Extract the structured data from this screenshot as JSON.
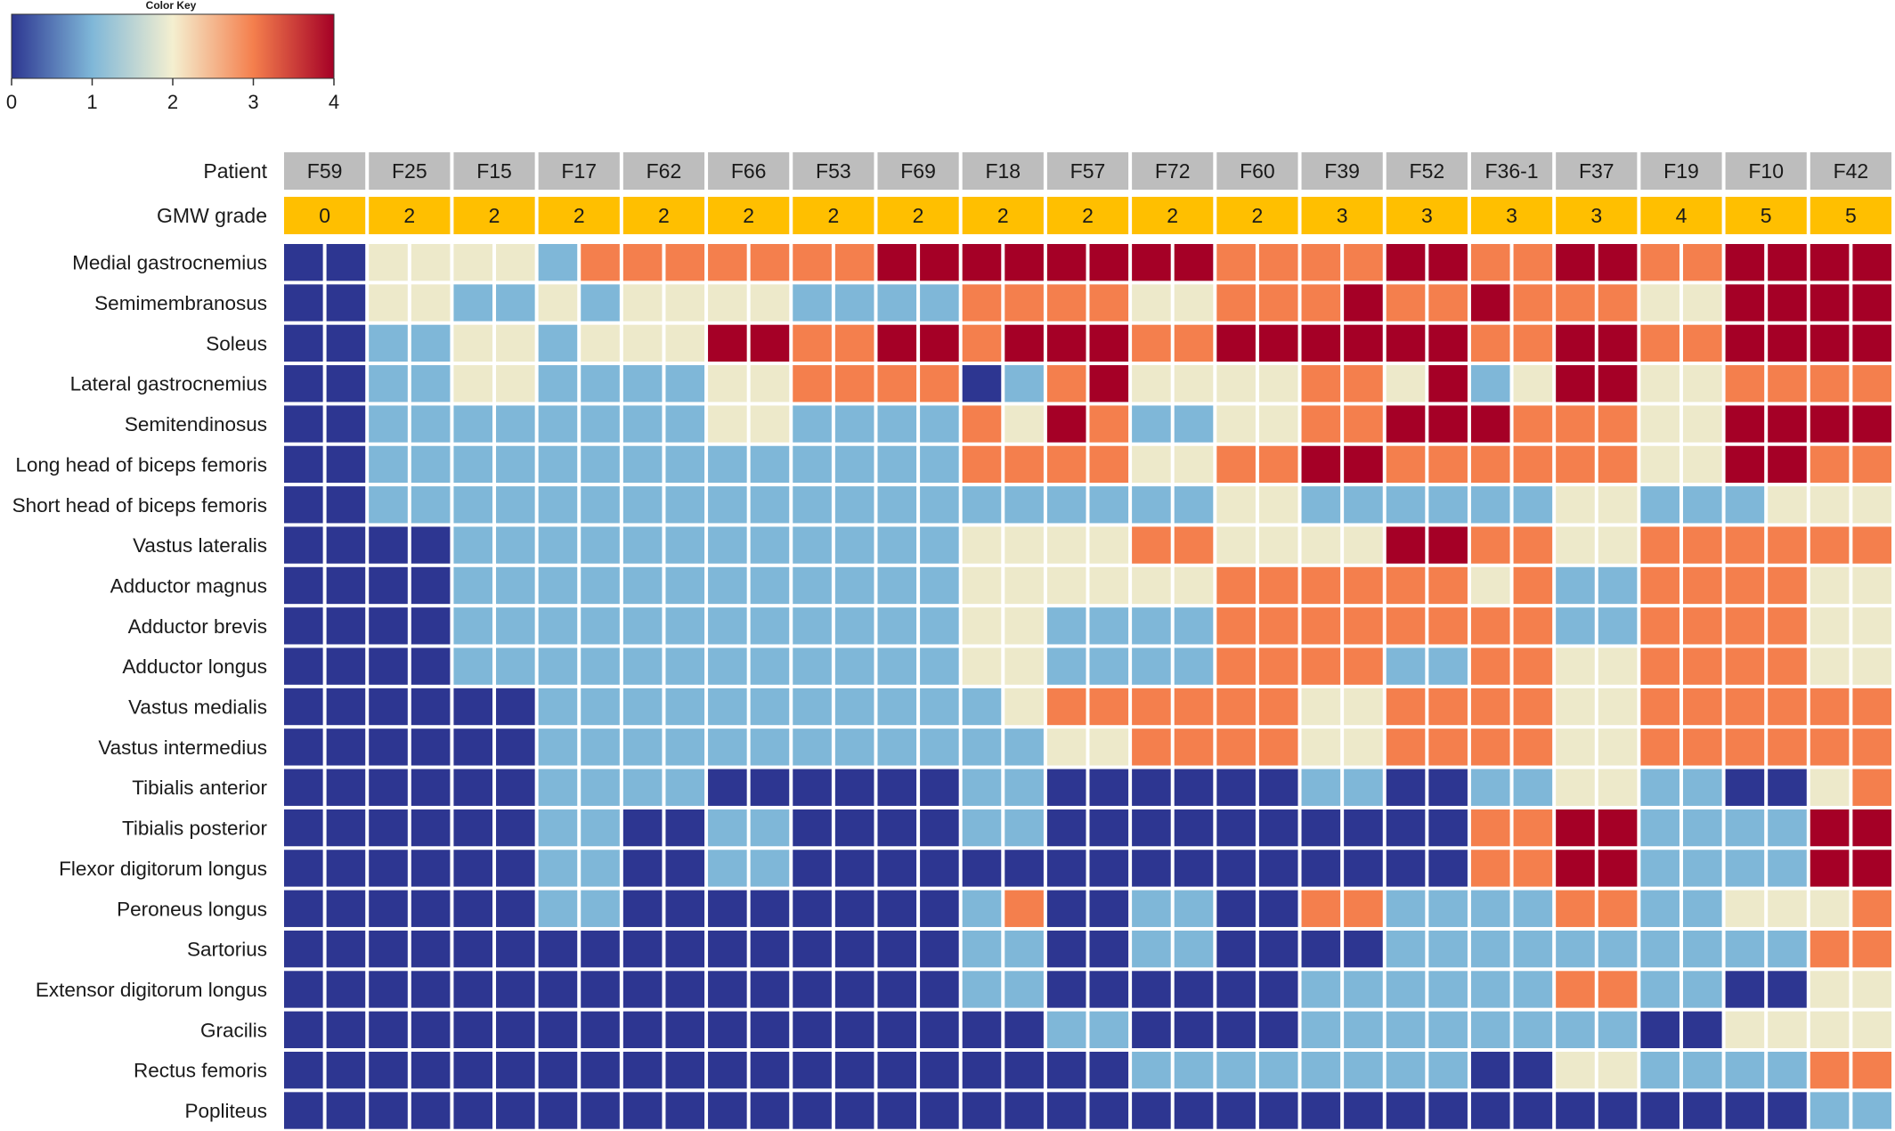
{
  "chart_data": {
    "type": "heatmap",
    "color_key": {
      "title": "Color Key",
      "ticks": [
        0,
        1,
        2,
        3,
        4
      ],
      "range": [
        0,
        4
      ],
      "gradient": [
        "#2d3691",
        "#7fb7d8",
        "#f4efd0",
        "#f47f4d",
        "#a50026"
      ]
    },
    "header_rows": [
      {
        "label": "Patient",
        "values": [
          "F59",
          "F25",
          "F15",
          "F17",
          "F62",
          "F66",
          "F53",
          "F69",
          "F18",
          "F57",
          "F72",
          "F60",
          "F39",
          "F52",
          "F36-1",
          "F37",
          "F19",
          "F10",
          "F42"
        ],
        "color": "#bdbdbd"
      },
      {
        "label": "GMW grade",
        "values": [
          "0",
          "2",
          "2",
          "2",
          "2",
          "2",
          "2",
          "2",
          "2",
          "2",
          "2",
          "2",
          "3",
          "3",
          "3",
          "3",
          "4",
          "5",
          "5"
        ],
        "color": "#ffbf00"
      }
    ],
    "levels": {
      "0": "#2d3691",
      "1": "#7fb7d8",
      "2": "#ede9ca",
      "3": "#f47f4d",
      "4": "#a50026"
    },
    "rows": [
      {
        "muscle": "Medial gastrocnemius",
        "values": [
          0,
          0,
          2,
          2,
          2,
          2,
          1,
          3,
          3,
          3,
          3,
          3,
          3,
          3,
          4,
          4,
          4,
          4,
          4,
          4,
          4,
          4,
          3,
          3,
          3,
          3,
          4,
          4,
          3,
          3,
          4,
          4,
          3,
          3,
          4,
          4,
          4,
          4
        ]
      },
      {
        "muscle": "Semimembranosus",
        "values": [
          0,
          0,
          2,
          2,
          1,
          1,
          2,
          1,
          2,
          2,
          2,
          2,
          1,
          1,
          1,
          1,
          3,
          3,
          3,
          3,
          2,
          2,
          3,
          3,
          3,
          4,
          3,
          3,
          4,
          3,
          3,
          3,
          2,
          2,
          4,
          4,
          4,
          4
        ]
      },
      {
        "muscle": "Soleus",
        "values": [
          0,
          0,
          1,
          1,
          2,
          2,
          1,
          2,
          2,
          2,
          4,
          4,
          3,
          3,
          4,
          4,
          3,
          4,
          4,
          4,
          3,
          3,
          4,
          4,
          4,
          4,
          4,
          4,
          3,
          3,
          4,
          4,
          3,
          3,
          4,
          4,
          4,
          4
        ]
      },
      {
        "muscle": "Lateral gastrocnemius",
        "values": [
          0,
          0,
          1,
          1,
          2,
          2,
          1,
          1,
          1,
          1,
          2,
          2,
          3,
          3,
          3,
          3,
          0,
          1,
          3,
          4,
          2,
          2,
          2,
          2,
          3,
          3,
          2,
          4,
          1,
          2,
          4,
          4,
          2,
          2,
          3,
          3,
          3,
          3
        ]
      },
      {
        "muscle": "Semitendinosus",
        "values": [
          0,
          0,
          1,
          1,
          1,
          1,
          1,
          1,
          1,
          1,
          2,
          2,
          1,
          1,
          1,
          1,
          3,
          2,
          4,
          3,
          1,
          1,
          2,
          2,
          3,
          3,
          4,
          4,
          4,
          3,
          3,
          3,
          2,
          2,
          4,
          4,
          4,
          4
        ]
      },
      {
        "muscle": "Long head of biceps femoris",
        "values": [
          0,
          0,
          1,
          1,
          1,
          1,
          1,
          1,
          1,
          1,
          1,
          1,
          1,
          1,
          1,
          1,
          3,
          3,
          3,
          3,
          2,
          2,
          3,
          3,
          4,
          4,
          3,
          3,
          3,
          3,
          3,
          3,
          2,
          2,
          4,
          4,
          3,
          3
        ]
      },
      {
        "muscle": "Short head of biceps femoris",
        "values": [
          0,
          0,
          1,
          1,
          1,
          1,
          1,
          1,
          1,
          1,
          1,
          1,
          1,
          1,
          1,
          1,
          1,
          1,
          1,
          1,
          1,
          1,
          2,
          2,
          1,
          1,
          1,
          1,
          1,
          1,
          2,
          2,
          1,
          1,
          1,
          2,
          2,
          2
        ]
      },
      {
        "muscle": "Vastus lateralis",
        "values": [
          0,
          0,
          0,
          0,
          1,
          1,
          1,
          1,
          1,
          1,
          1,
          1,
          1,
          1,
          1,
          1,
          2,
          2,
          2,
          2,
          3,
          3,
          2,
          2,
          2,
          2,
          4,
          4,
          3,
          3,
          2,
          2,
          3,
          3,
          3,
          3,
          3,
          3
        ]
      },
      {
        "muscle": "Adductor magnus",
        "values": [
          0,
          0,
          0,
          0,
          1,
          1,
          1,
          1,
          1,
          1,
          1,
          1,
          1,
          1,
          1,
          1,
          2,
          2,
          2,
          2,
          2,
          2,
          3,
          3,
          3,
          3,
          3,
          3,
          2,
          3,
          1,
          1,
          3,
          3,
          3,
          3,
          2,
          2
        ]
      },
      {
        "muscle": "Adductor brevis",
        "values": [
          0,
          0,
          0,
          0,
          1,
          1,
          1,
          1,
          1,
          1,
          1,
          1,
          1,
          1,
          1,
          1,
          2,
          2,
          1,
          1,
          1,
          1,
          3,
          3,
          3,
          3,
          3,
          3,
          3,
          3,
          1,
          1,
          3,
          3,
          3,
          3,
          2,
          2
        ]
      },
      {
        "muscle": "Adductor longus",
        "values": [
          0,
          0,
          0,
          0,
          1,
          1,
          1,
          1,
          1,
          1,
          1,
          1,
          1,
          1,
          1,
          1,
          2,
          2,
          1,
          1,
          1,
          1,
          3,
          3,
          3,
          3,
          1,
          1,
          3,
          3,
          2,
          2,
          3,
          3,
          3,
          3,
          2,
          2
        ]
      },
      {
        "muscle": "Vastus medialis",
        "values": [
          0,
          0,
          0,
          0,
          0,
          0,
          1,
          1,
          1,
          1,
          1,
          1,
          1,
          1,
          1,
          1,
          1,
          2,
          3,
          3,
          3,
          3,
          3,
          3,
          2,
          2,
          3,
          3,
          3,
          3,
          2,
          2,
          3,
          3,
          3,
          3,
          3,
          3
        ]
      },
      {
        "muscle": "Vastus intermedius",
        "values": [
          0,
          0,
          0,
          0,
          0,
          0,
          1,
          1,
          1,
          1,
          1,
          1,
          1,
          1,
          1,
          1,
          1,
          1,
          2,
          2,
          3,
          3,
          3,
          3,
          2,
          2,
          3,
          3,
          3,
          3,
          2,
          2,
          3,
          3,
          3,
          3,
          3,
          3
        ]
      },
      {
        "muscle": "Tibialis anterior",
        "values": [
          0,
          0,
          0,
          0,
          0,
          0,
          1,
          1,
          1,
          1,
          0,
          0,
          0,
          0,
          0,
          0,
          1,
          1,
          0,
          0,
          0,
          0,
          0,
          0,
          1,
          1,
          0,
          0,
          1,
          1,
          2,
          2,
          1,
          1,
          0,
          0,
          2,
          3
        ]
      },
      {
        "muscle": "Tibialis posterior",
        "values": [
          0,
          0,
          0,
          0,
          0,
          0,
          1,
          1,
          0,
          0,
          1,
          1,
          0,
          0,
          0,
          0,
          1,
          1,
          0,
          0,
          0,
          0,
          0,
          0,
          0,
          0,
          0,
          0,
          3,
          3,
          4,
          4,
          1,
          1,
          1,
          1,
          4,
          4
        ]
      },
      {
        "muscle": "Flexor digitorum longus",
        "values": [
          0,
          0,
          0,
          0,
          0,
          0,
          1,
          1,
          0,
          0,
          1,
          1,
          0,
          0,
          0,
          0,
          0,
          0,
          0,
          0,
          0,
          0,
          0,
          0,
          0,
          0,
          0,
          0,
          3,
          3,
          4,
          4,
          1,
          1,
          1,
          1,
          4,
          4
        ]
      },
      {
        "muscle": "Peroneus longus",
        "values": [
          0,
          0,
          0,
          0,
          0,
          0,
          1,
          1,
          0,
          0,
          0,
          0,
          0,
          0,
          0,
          0,
          1,
          3,
          0,
          0,
          1,
          1,
          0,
          0,
          3,
          3,
          1,
          1,
          1,
          1,
          3,
          3,
          1,
          1,
          2,
          2,
          2,
          3
        ]
      },
      {
        "muscle": "Sartorius",
        "values": [
          0,
          0,
          0,
          0,
          0,
          0,
          0,
          0,
          0,
          0,
          0,
          0,
          0,
          0,
          0,
          0,
          1,
          1,
          0,
          0,
          1,
          1,
          0,
          0,
          0,
          0,
          1,
          1,
          1,
          1,
          1,
          1,
          1,
          1,
          1,
          1,
          3,
          3
        ]
      },
      {
        "muscle": "Extensor digitorum longus",
        "values": [
          0,
          0,
          0,
          0,
          0,
          0,
          0,
          0,
          0,
          0,
          0,
          0,
          0,
          0,
          0,
          0,
          1,
          1,
          0,
          0,
          0,
          0,
          0,
          0,
          1,
          1,
          1,
          1,
          1,
          1,
          3,
          3,
          1,
          1,
          0,
          0,
          2,
          2
        ]
      },
      {
        "muscle": "Gracilis",
        "values": [
          0,
          0,
          0,
          0,
          0,
          0,
          0,
          0,
          0,
          0,
          0,
          0,
          0,
          0,
          0,
          0,
          0,
          0,
          1,
          1,
          0,
          0,
          0,
          0,
          1,
          1,
          1,
          1,
          1,
          1,
          1,
          1,
          0,
          0,
          2,
          2,
          2,
          2
        ]
      },
      {
        "muscle": "Rectus femoris",
        "values": [
          0,
          0,
          0,
          0,
          0,
          0,
          0,
          0,
          0,
          0,
          0,
          0,
          0,
          0,
          0,
          0,
          0,
          0,
          0,
          0,
          1,
          1,
          1,
          1,
          1,
          1,
          1,
          1,
          0,
          0,
          2,
          2,
          1,
          1,
          1,
          1,
          3,
          3
        ]
      },
      {
        "muscle": "Popliteus",
        "values": [
          0,
          0,
          0,
          0,
          0,
          0,
          0,
          0,
          0,
          0,
          0,
          0,
          0,
          0,
          0,
          0,
          0,
          0,
          0,
          0,
          0,
          0,
          0,
          0,
          0,
          0,
          0,
          0,
          0,
          0,
          0,
          0,
          0,
          0,
          0,
          0,
          1,
          1
        ]
      }
    ]
  }
}
